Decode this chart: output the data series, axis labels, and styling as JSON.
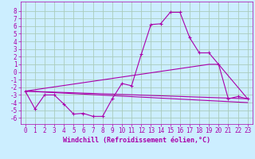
{
  "xlabel": "Windchill (Refroidissement éolien,°C)",
  "ylabel": "",
  "bg_color": "#cceeff",
  "grid_color": "#aaccbb",
  "line_color": "#aa00aa",
  "xlim": [
    -0.5,
    23.5
  ],
  "ylim": [
    -6.8,
    9.2
  ],
  "xticks": [
    0,
    1,
    2,
    3,
    4,
    5,
    6,
    7,
    8,
    9,
    10,
    11,
    12,
    13,
    14,
    15,
    16,
    17,
    18,
    19,
    20,
    21,
    22,
    23
  ],
  "yticks": [
    -6,
    -5,
    -4,
    -3,
    -2,
    -1,
    0,
    1,
    2,
    3,
    4,
    5,
    6,
    7,
    8
  ],
  "series1_x": [
    0,
    1,
    2,
    3,
    4,
    5,
    6,
    7,
    8,
    9,
    10,
    11,
    12,
    13,
    14,
    15,
    16,
    17,
    18,
    19,
    20,
    21,
    22,
    23
  ],
  "series1_y": [
    -2.5,
    -4.8,
    -3.0,
    -3.0,
    -4.2,
    -5.5,
    -5.4,
    -5.8,
    -5.8,
    -3.5,
    -1.5,
    -1.8,
    2.3,
    6.2,
    6.3,
    7.8,
    7.8,
    4.5,
    2.5,
    2.5,
    1.0,
    -3.5,
    -3.2,
    -3.5
  ],
  "series2_x": [
    0,
    23
  ],
  "series2_y": [
    -2.5,
    -3.5
  ],
  "series3_x": [
    0,
    23
  ],
  "series3_y": [
    -2.5,
    -4.0
  ],
  "series4_x": [
    0,
    19,
    20,
    23
  ],
  "series4_y": [
    -2.5,
    1.0,
    1.0,
    -3.5
  ],
  "tick_fontsize": 5.5,
  "xlabel_fontsize": 6.0
}
